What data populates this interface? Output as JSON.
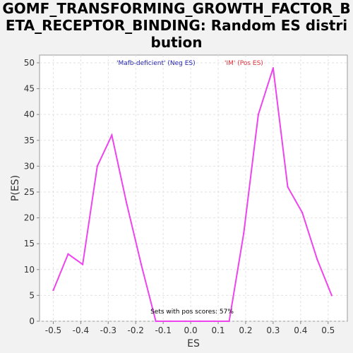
{
  "chart_data": {
    "type": "line",
    "title": "GOMF_TRANSFORMING_GROWTH_FACTOR_BETA_RECEPTOR_BINDING: Random ES distribution",
    "xlabel": "ES",
    "ylabel": "P(ES)",
    "xlim": [
      -0.55,
      0.57
    ],
    "ylim": [
      0,
      51.5
    ],
    "xticks": [
      "-0.5",
      "-0.4",
      "-0.3",
      "-0.2",
      "-0.1",
      "0.0",
      "0.1",
      "0.2",
      "0.3",
      "0.4",
      "0.5"
    ],
    "yticks": [
      "0",
      "5",
      "10",
      "15",
      "20",
      "25",
      "30",
      "35",
      "40",
      "45",
      "50"
    ],
    "grid": true,
    "legend": [
      {
        "label": "'Mafb-deficient' (Neg ES)",
        "color": "#1f1fae"
      },
      {
        "label": "'IM' (Pos ES)",
        "color": "#e0303a"
      }
    ],
    "annotation": "Sets with pos scores: 57%",
    "series": [
      {
        "color": "#ee44ee",
        "x": [
          -0.5,
          -0.446,
          -0.393,
          -0.34,
          -0.287,
          -0.234,
          -0.18,
          -0.127,
          -0.074,
          -0.02,
          0.033,
          0.086,
          0.14,
          0.193,
          0.246,
          0.3,
          0.353,
          0.406,
          0.46,
          0.513
        ],
        "y": [
          6,
          13,
          11,
          30,
          36,
          23,
          11,
          0,
          0,
          0,
          0,
          0,
          0,
          17,
          40,
          49,
          26,
          21,
          12,
          5
        ]
      }
    ]
  }
}
